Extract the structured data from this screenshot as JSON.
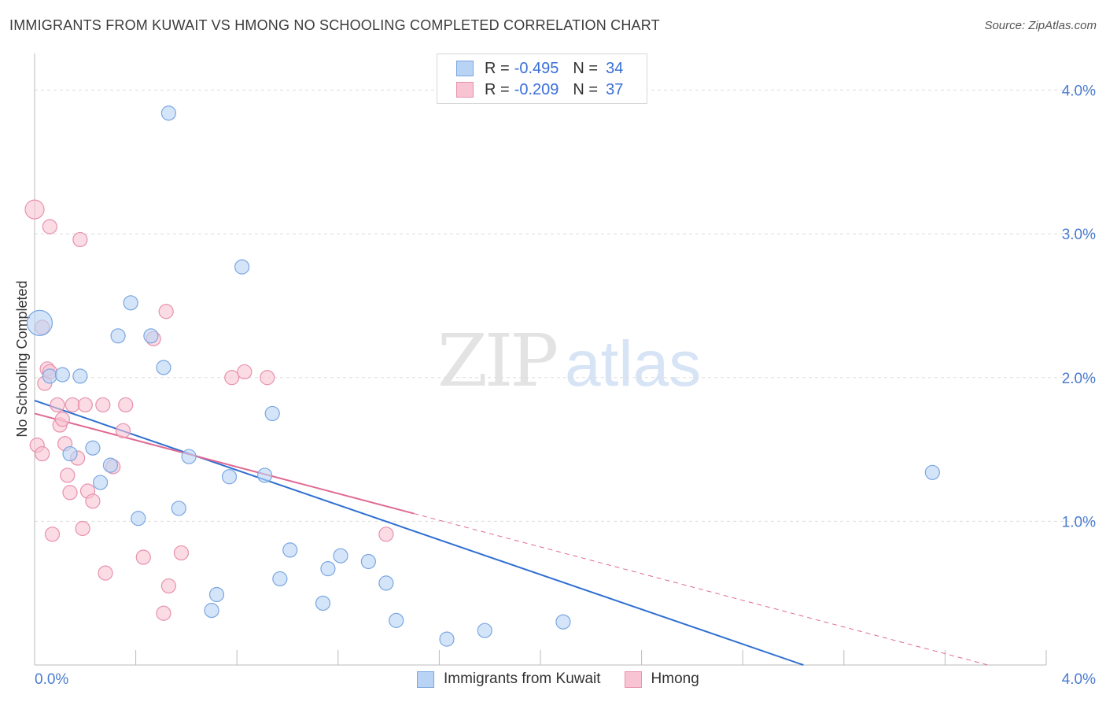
{
  "title": "IMMIGRANTS FROM KUWAIT VS HMONG NO SCHOOLING COMPLETED CORRELATION CHART",
  "source": "Source: ZipAtlas.com",
  "watermark": {
    "zip": "ZIP",
    "atlas": "atlas"
  },
  "colors": {
    "kuwait_fill": "#b9d3f5",
    "kuwait_stroke": "#7aa6e0",
    "kuwait_line": "#2f6fd1",
    "hmong_fill": "#f8c3d2",
    "hmong_stroke": "#e891ad",
    "hmong_line": "#e06a93",
    "tick_text": "#4a7ccf",
    "grid": "#dddddd"
  },
  "legend": {
    "rows": [
      {
        "r_label": "R =",
        "r_value": "-0.495",
        "n_label": "N =",
        "n_value": "34"
      },
      {
        "r_label": "R =",
        "r_value": "-0.209",
        "n_label": "N =",
        "n_value": "37"
      }
    ]
  },
  "bottom_legend": {
    "kuwait": "Immigrants from Kuwait",
    "hmong": "Hmong"
  },
  "chart_data": {
    "type": "scatter",
    "xlabel": "",
    "ylabel": "No Schooling Completed",
    "xlim": [
      0,
      4.0
    ],
    "ylim": [
      0,
      4.2
    ],
    "x_tick_labels": [
      "0.0%",
      "4.0%"
    ],
    "y_ticks": [
      1.0,
      2.0,
      3.0,
      4.0
    ],
    "y_tick_labels": [
      "1.0%",
      "2.0%",
      "3.0%",
      "4.0%"
    ],
    "series": [
      {
        "name": "Immigrants from Kuwait",
        "trend": {
          "x0": 0.0,
          "y0": 1.84,
          "x1": 3.04,
          "y1": 0.0,
          "solid_until": 3.04
        },
        "points": [
          [
            0.02,
            2.38,
            16
          ],
          [
            0.06,
            2.01,
            9
          ],
          [
            0.11,
            2.02,
            9
          ],
          [
            0.18,
            2.01,
            9
          ],
          [
            0.14,
            1.47,
            9
          ],
          [
            0.23,
            1.51,
            9
          ],
          [
            0.26,
            1.27,
            9
          ],
          [
            0.3,
            1.39,
            9
          ],
          [
            0.33,
            2.29,
            9
          ],
          [
            0.38,
            2.52,
            9
          ],
          [
            0.41,
            1.02,
            9
          ],
          [
            0.46,
            2.29,
            9
          ],
          [
            0.51,
            2.07,
            9
          ],
          [
            0.53,
            3.84,
            9
          ],
          [
            0.57,
            1.09,
            9
          ],
          [
            0.61,
            1.45,
            9
          ],
          [
            0.7,
            0.38,
            9
          ],
          [
            0.72,
            0.49,
            9
          ],
          [
            0.77,
            1.31,
            9
          ],
          [
            0.82,
            2.77,
            9
          ],
          [
            0.91,
            1.32,
            9
          ],
          [
            0.94,
            1.75,
            9
          ],
          [
            0.97,
            0.6,
            9
          ],
          [
            1.01,
            0.8,
            9
          ],
          [
            1.14,
            0.43,
            9
          ],
          [
            1.16,
            0.67,
            9
          ],
          [
            1.21,
            0.76,
            9
          ],
          [
            1.32,
            0.72,
            9
          ],
          [
            1.39,
            0.57,
            9
          ],
          [
            1.43,
            0.31,
            9
          ],
          [
            1.63,
            0.18,
            9
          ],
          [
            1.78,
            0.24,
            9
          ],
          [
            2.09,
            0.3,
            9
          ],
          [
            3.55,
            1.34,
            9
          ]
        ]
      },
      {
        "name": "Hmong",
        "trend": {
          "x0": 0.0,
          "y0": 1.75,
          "x1": 3.77,
          "y1": 0.0,
          "solid_until": 1.5
        },
        "points": [
          [
            0.0,
            3.17,
            12
          ],
          [
            0.01,
            1.53,
            9
          ],
          [
            0.03,
            2.35,
            9
          ],
          [
            0.03,
            1.47,
            9
          ],
          [
            0.04,
            1.96,
            9
          ],
          [
            0.05,
            2.06,
            9
          ],
          [
            0.06,
            2.04,
            9
          ],
          [
            0.06,
            3.05,
            9
          ],
          [
            0.07,
            0.91,
            9
          ],
          [
            0.09,
            1.81,
            9
          ],
          [
            0.1,
            1.67,
            9
          ],
          [
            0.11,
            1.71,
            9
          ],
          [
            0.12,
            1.54,
            9
          ],
          [
            0.13,
            1.32,
            9
          ],
          [
            0.14,
            1.2,
            9
          ],
          [
            0.15,
            1.81,
            9
          ],
          [
            0.17,
            1.44,
            9
          ],
          [
            0.18,
            2.96,
            9
          ],
          [
            0.19,
            0.95,
            9
          ],
          [
            0.2,
            1.81,
            9
          ],
          [
            0.21,
            1.21,
            9
          ],
          [
            0.23,
            1.14,
            9
          ],
          [
            0.27,
            1.81,
            9
          ],
          [
            0.28,
            0.64,
            9
          ],
          [
            0.31,
            1.38,
            9
          ],
          [
            0.35,
            1.63,
            9
          ],
          [
            0.36,
            1.81,
            9
          ],
          [
            0.43,
            0.75,
            9
          ],
          [
            0.47,
            2.27,
            9
          ],
          [
            0.51,
            0.36,
            9
          ],
          [
            0.52,
            2.46,
            9
          ],
          [
            0.53,
            0.55,
            9
          ],
          [
            0.58,
            0.78,
            9
          ],
          [
            0.78,
            2.0,
            9
          ],
          [
            0.83,
            2.04,
            9
          ],
          [
            0.92,
            2.0,
            9
          ],
          [
            1.39,
            0.91,
            9
          ]
        ]
      }
    ]
  }
}
